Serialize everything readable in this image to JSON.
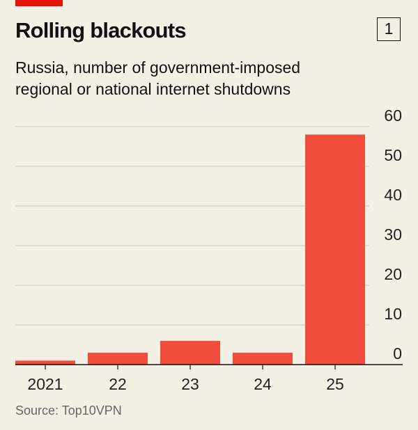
{
  "header": {
    "title": "Rolling blackouts",
    "chart_number": "1",
    "subtitle_line1": "Russia, number of government-imposed",
    "subtitle_line2": "regional or national internet shutdowns"
  },
  "footer": {
    "source": "Source: Top10VPN"
  },
  "colors": {
    "bar": "#f04e3a",
    "accent": "#e3120b",
    "background": "#f3f1e6",
    "grid": "#c9c7bd"
  },
  "chart_data": {
    "type": "bar",
    "title": "Rolling blackouts",
    "subtitle": "Russia, number of government-imposed regional or national internet shutdowns",
    "categories": [
      "2021",
      "22",
      "23",
      "24",
      "25"
    ],
    "values": [
      1,
      3,
      6,
      3,
      58
    ],
    "yticks": [
      0,
      10,
      20,
      30,
      40,
      50,
      60
    ],
    "ylim": [
      0,
      60
    ],
    "y_axis_side": "right",
    "xlabel": "",
    "ylabel": "",
    "source": "Source: Top10VPN"
  }
}
